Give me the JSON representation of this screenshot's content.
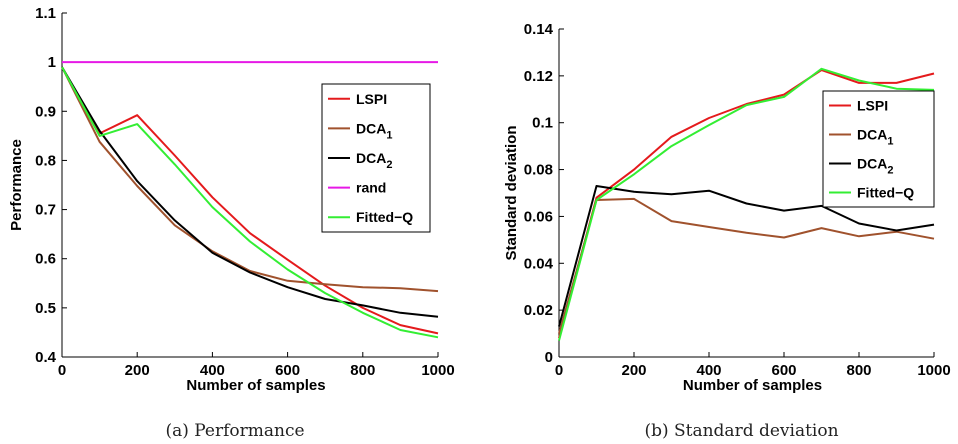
{
  "chart_data": [
    {
      "type": "line",
      "caption": "(a) Performance",
      "xlabel": "Number of samples",
      "ylabel": "Performance",
      "xlim": [
        0,
        1000
      ],
      "ylim": [
        0.4,
        1.1
      ],
      "xticks": [
        "0",
        "200",
        "400",
        "600",
        "800",
        "1000"
      ],
      "yticks": [
        "0.4",
        "0.5",
        "0.6",
        "0.7",
        "0.8",
        "0.9",
        "1",
        "1.1"
      ],
      "grid": false,
      "legend": "right",
      "x": [
        0,
        100,
        200,
        300,
        400,
        500,
        600,
        700,
        800,
        900,
        1000
      ],
      "series": [
        {
          "name": "LSPI",
          "sub": "",
          "color": "#e41a1c",
          "values": [
            0.99,
            0.855,
            0.892,
            0.81,
            0.725,
            0.652,
            0.598,
            0.545,
            0.5,
            0.465,
            0.448
          ]
        },
        {
          "name": "DCA",
          "sub": "1",
          "color": "#a0522d",
          "values": [
            0.99,
            0.838,
            0.748,
            0.668,
            0.615,
            0.575,
            0.555,
            0.548,
            0.542,
            0.54,
            0.534
          ]
        },
        {
          "name": "DCA",
          "sub": "2",
          "color": "#000000",
          "values": [
            0.99,
            0.86,
            0.758,
            0.678,
            0.612,
            0.572,
            0.542,
            0.518,
            0.505,
            0.49,
            0.482
          ]
        },
        {
          "name": "rand",
          "sub": "",
          "color": "#e619e6",
          "values": [
            1.0,
            1.0,
            1.0,
            1.0,
            1.0,
            1.0,
            1.0,
            1.0,
            1.0,
            1.0,
            1.0
          ]
        },
        {
          "name": "Fitted−Q",
          "sub": "",
          "color": "#33ee33",
          "values": [
            0.99,
            0.85,
            0.874,
            0.792,
            0.705,
            0.635,
            0.578,
            0.53,
            0.49,
            0.455,
            0.44
          ]
        }
      ]
    },
    {
      "type": "line",
      "caption": "(b) Standard deviation",
      "xlabel": "Number of samples",
      "ylabel": "Standard deviation",
      "xlim": [
        0,
        1000
      ],
      "ylim": [
        0,
        0.14
      ],
      "xticks": [
        "0",
        "200",
        "400",
        "600",
        "800",
        "1000"
      ],
      "yticks": [
        "0",
        "0.02",
        "0.04",
        "0.06",
        "0.08",
        "0.1",
        "0.12",
        "0.14"
      ],
      "grid": false,
      "legend": "right",
      "x": [
        0,
        100,
        200,
        300,
        400,
        500,
        600,
        700,
        800,
        900,
        1000
      ],
      "series": [
        {
          "name": "LSPI",
          "sub": "",
          "color": "#e41a1c",
          "values": [
            0.008,
            0.068,
            0.08,
            0.094,
            0.102,
            0.108,
            0.112,
            0.1225,
            0.117,
            0.117,
            0.121
          ]
        },
        {
          "name": "DCA",
          "sub": "1",
          "color": "#a0522d",
          "values": [
            0.01,
            0.067,
            0.0675,
            0.058,
            0.0555,
            0.053,
            0.051,
            0.055,
            0.0515,
            0.0535,
            0.0505
          ]
        },
        {
          "name": "DCA",
          "sub": "2",
          "color": "#000000",
          "values": [
            0.013,
            0.073,
            0.0705,
            0.0695,
            0.071,
            0.0655,
            0.0625,
            0.0645,
            0.057,
            0.054,
            0.0565
          ]
        },
        {
          "name": "Fitted−Q",
          "sub": "",
          "color": "#33ee33",
          "values": [
            0.007,
            0.067,
            0.078,
            0.09,
            0.099,
            0.1075,
            0.111,
            0.123,
            0.118,
            0.1145,
            0.114
          ]
        }
      ]
    }
  ]
}
